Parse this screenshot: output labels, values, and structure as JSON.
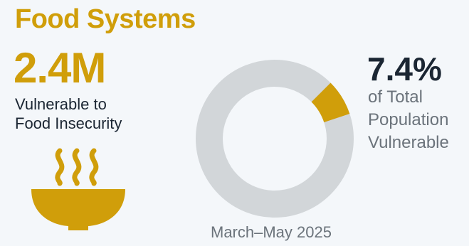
{
  "title": "Food Systems",
  "stat": {
    "value": "2.4M",
    "label_lines": [
      "Vulnerable to",
      "Food Insecurity"
    ]
  },
  "share": {
    "value": "7.4%",
    "percent": 7.4,
    "label_lines": [
      "of Total",
      "Population",
      "Vulnerable"
    ]
  },
  "period": "March–May 2025",
  "icons": {
    "bowl": "steaming-bowl-icon"
  },
  "colors": {
    "accent": "#d09e0a",
    "donut_remainder": "#d2d6d9",
    "dark_text": "#1b2633",
    "muted_text": "#6b737b",
    "background": "#f4f7fa"
  }
}
